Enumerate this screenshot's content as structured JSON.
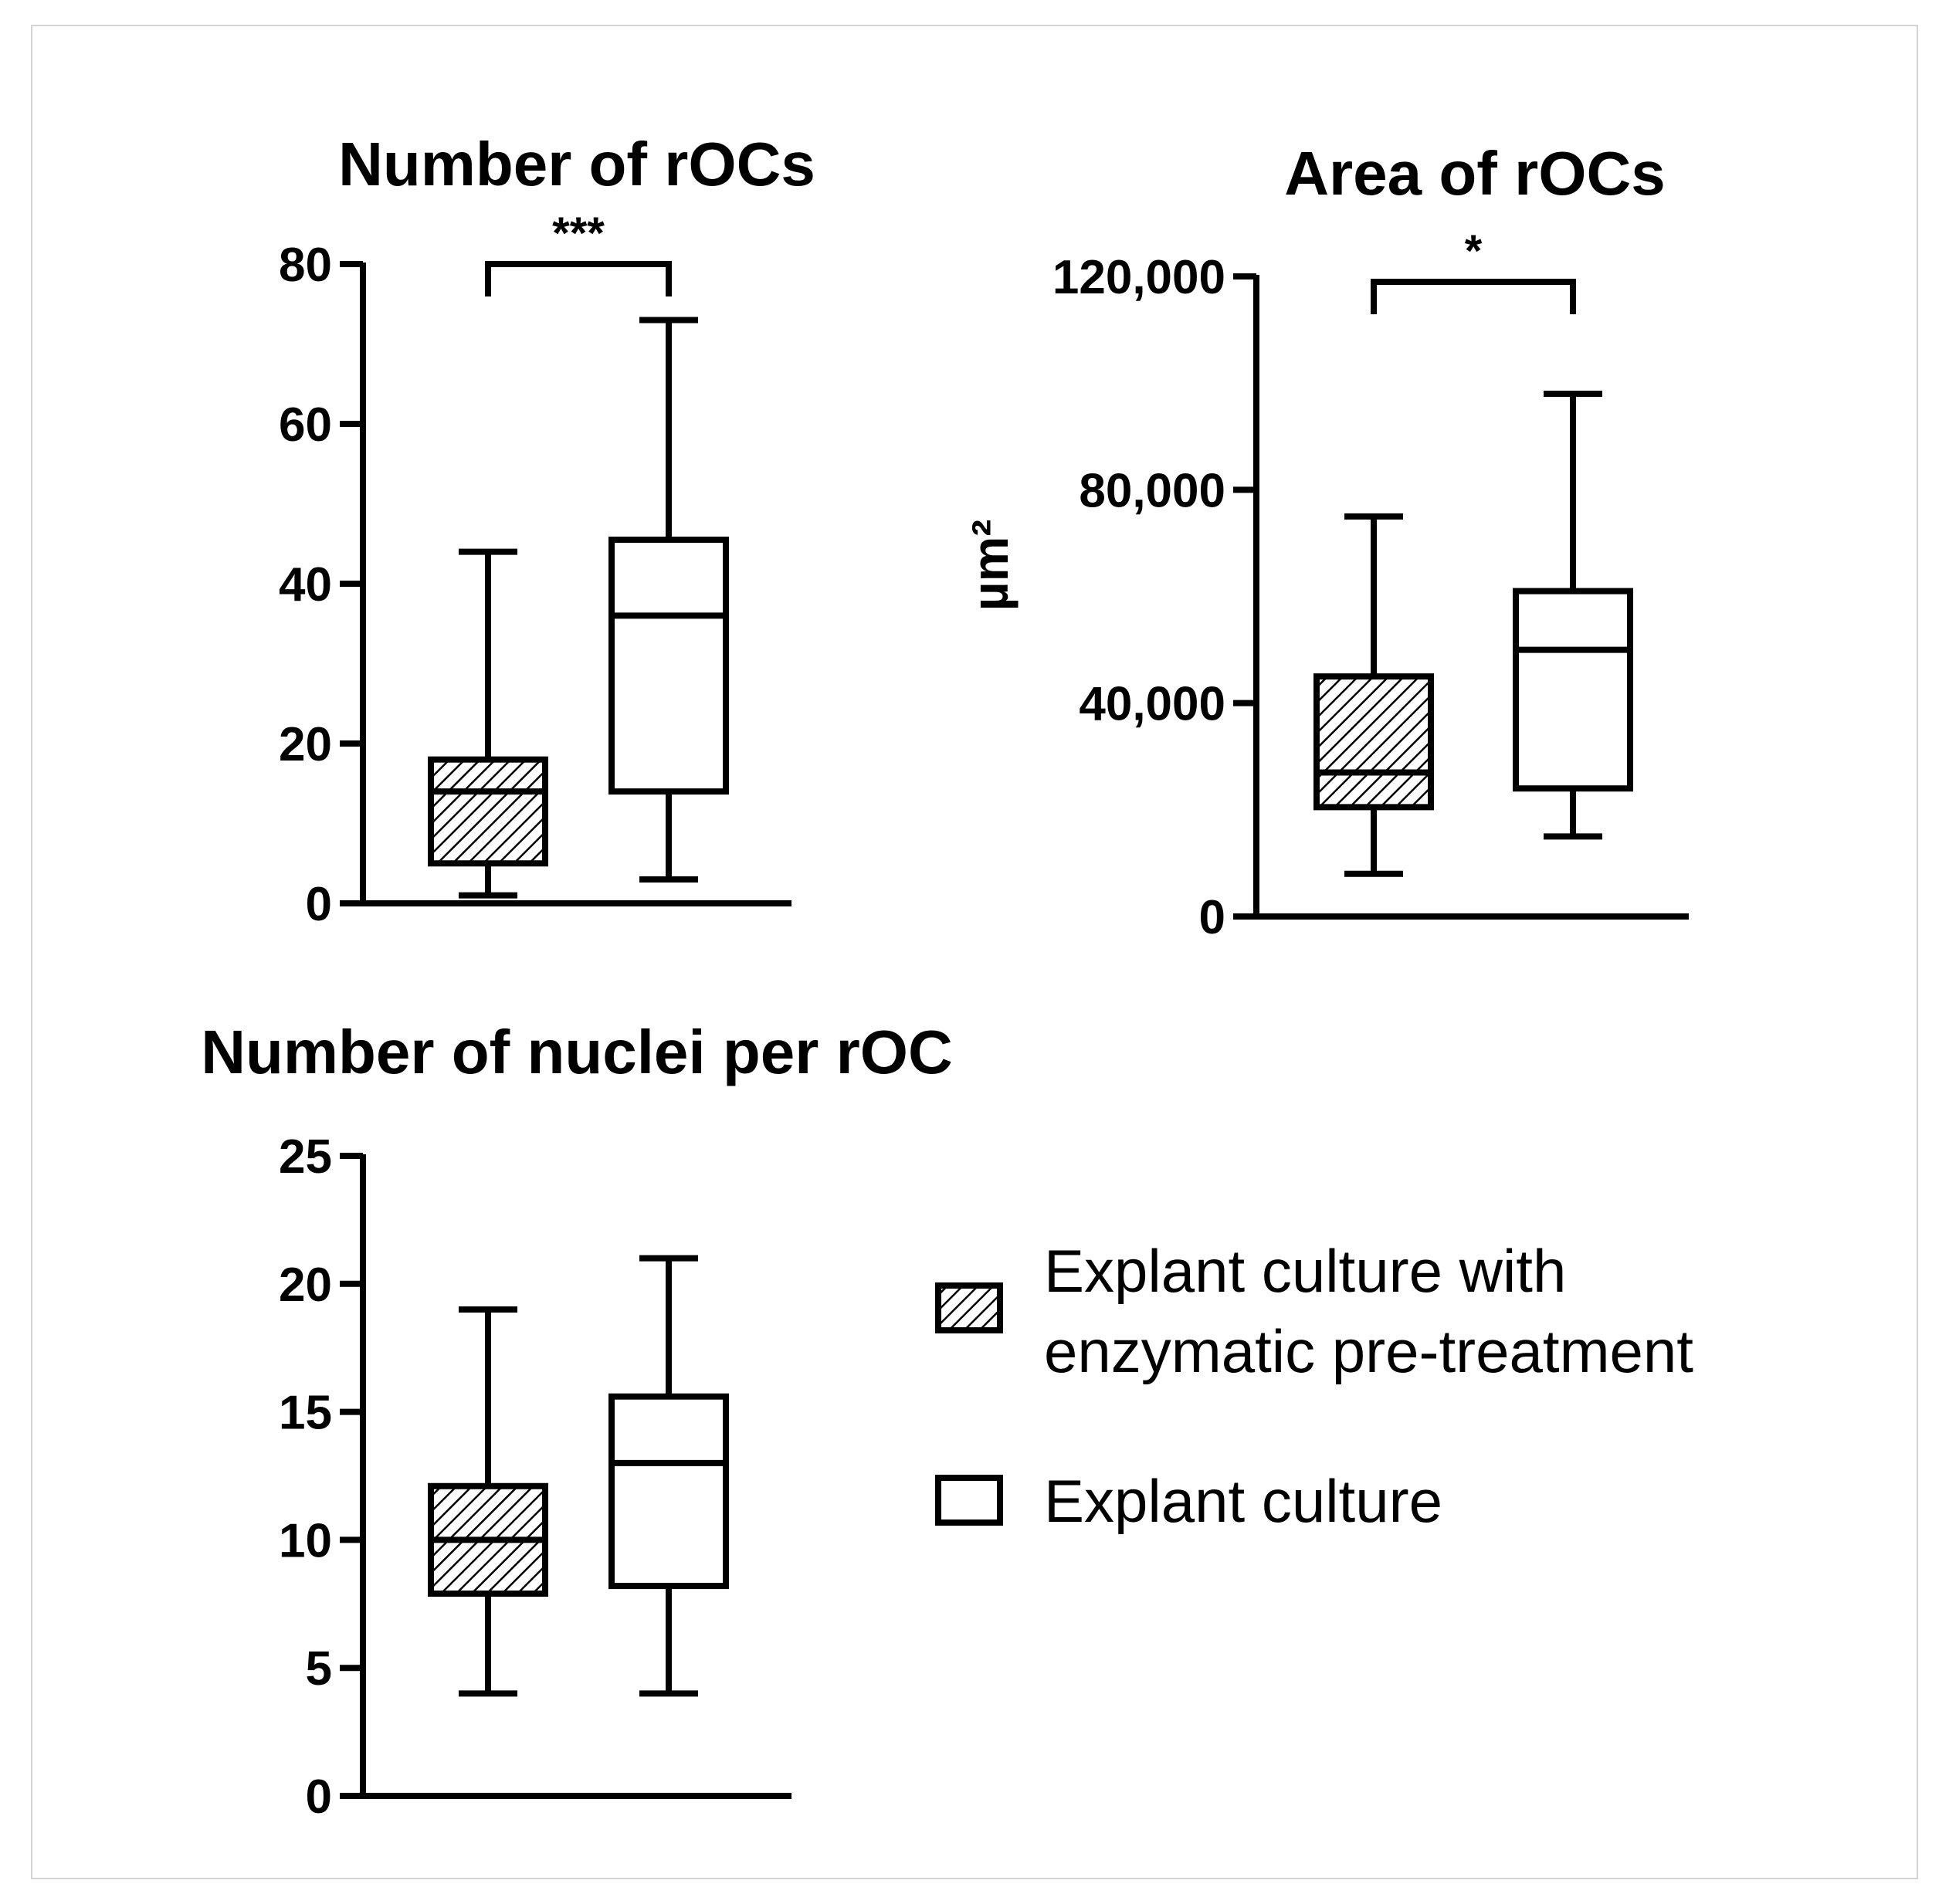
{
  "legend": {
    "items": [
      {
        "lines": [
          "Explant culture with",
          "enzymatic pre-treatment"
        ],
        "pattern": "hatched"
      },
      {
        "lines": [
          "Explant culture"
        ],
        "pattern": "open"
      }
    ]
  },
  "chart_data": [
    {
      "type": "box",
      "title": "Number of rOCs",
      "ylabel": "",
      "ylim": [
        0,
        80
      ],
      "yticks": [
        0,
        20,
        40,
        60,
        80
      ],
      "ytick_labels": [
        "0",
        "20",
        "40",
        "60",
        "80"
      ],
      "series": [
        {
          "name": "Explant culture with enzymatic pre-treatment",
          "pattern": "hatched",
          "whisker_low": 1,
          "q1": 5,
          "median": 14,
          "q3": 18,
          "whisker_high": 44
        },
        {
          "name": "Explant culture",
          "pattern": "open",
          "whisker_low": 3,
          "q1": 14,
          "median": 36,
          "q3": 45.5,
          "whisker_high": 73
        }
      ],
      "significance": "***",
      "grid": false
    },
    {
      "type": "box",
      "title": "Area of rOCs",
      "ylabel": "µm²",
      "ylim": [
        0,
        120000
      ],
      "yticks": [
        0,
        40000,
        80000,
        120000
      ],
      "ytick_labels": [
        "0",
        "40,000",
        "80,000",
        "120,000"
      ],
      "series": [
        {
          "name": "Explant culture with enzymatic pre-treatment",
          "pattern": "hatched",
          "whisker_low": 8000,
          "q1": 20500,
          "median": 27000,
          "q3": 45000,
          "whisker_high": 75000
        },
        {
          "name": "Explant culture",
          "pattern": "open",
          "whisker_low": 15000,
          "q1": 24000,
          "median": 50000,
          "q3": 61000,
          "whisker_high": 98000
        }
      ],
      "significance": "*",
      "grid": false
    },
    {
      "type": "box",
      "title": "Number of nuclei per rOC",
      "ylabel": "",
      "ylim": [
        0,
        25
      ],
      "yticks": [
        0,
        5,
        10,
        15,
        20,
        25
      ],
      "ytick_labels": [
        "0",
        "5",
        "10",
        "15",
        "20",
        "25"
      ],
      "series": [
        {
          "name": "Explant culture with enzymatic pre-treatment",
          "pattern": "hatched",
          "whisker_low": 4,
          "q1": 7.9,
          "median": 10,
          "q3": 12.1,
          "whisker_high": 19
        },
        {
          "name": "Explant culture",
          "pattern": "open",
          "whisker_low": 4,
          "q1": 8.2,
          "median": 13,
          "q3": 15.6,
          "whisker_high": 21
        }
      ],
      "significance": "",
      "grid": false
    }
  ]
}
